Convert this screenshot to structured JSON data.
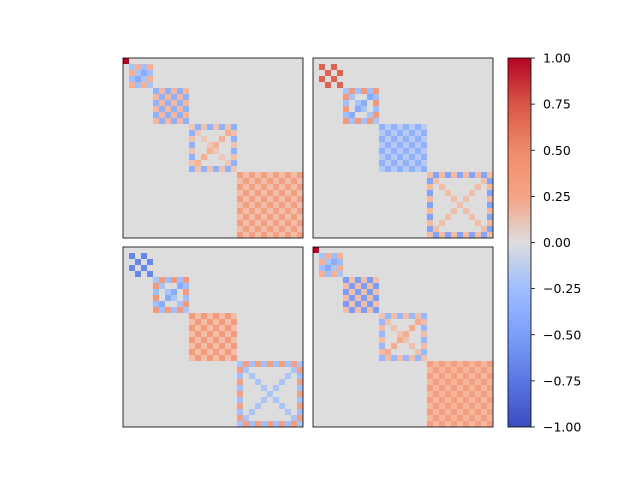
{
  "chart_data": {
    "type": "heatmap",
    "description": "2x2 grid of 30x30 matrix heatmaps with block-diagonal structure, shared diverging colorbar",
    "colormap": "coolwarm",
    "vmin": -1.0,
    "vmax": 1.0,
    "matrix_size": 30,
    "background_value": 0.0,
    "colorbar": {
      "ticks": [
        1.0,
        0.75,
        0.5,
        0.25,
        0.0,
        -0.25,
        -0.5,
        -0.75,
        -1.0
      ],
      "tick_labels": [
        "1.00",
        "0.75",
        "0.50",
        "0.25",
        "0.00",
        "−0.25",
        "−0.50",
        "−0.75",
        "−1.00"
      ]
    },
    "panels": [
      {
        "name": "top-left",
        "blocks": [
          {
            "start": 0,
            "size": 1,
            "pattern": "uniform",
            "value": 1.0
          },
          {
            "start": 1,
            "size": 4,
            "pattern": "ring",
            "value": 0.3,
            "alt": -0.4
          },
          {
            "start": 5,
            "size": 6,
            "pattern": "checker",
            "value": -0.35,
            "alt": 0.25
          },
          {
            "start": 11,
            "size": 8,
            "pattern": "ring",
            "value": -0.35,
            "alt": 0.3
          },
          {
            "start": 19,
            "size": 11,
            "pattern": "checker",
            "value": 0.45,
            "alt": 0.2
          }
        ]
      },
      {
        "name": "top-right",
        "blocks": [
          {
            "start": 1,
            "size": 4,
            "pattern": "checker",
            "value": 0.7,
            "alt": 0.0
          },
          {
            "start": 5,
            "size": 6,
            "pattern": "ring",
            "value": 0.5,
            "alt": -0.4
          },
          {
            "start": 11,
            "size": 8,
            "pattern": "checker",
            "value": -0.35,
            "alt": -0.15
          },
          {
            "start": 19,
            "size": 11,
            "pattern": "ring",
            "value": -0.45,
            "alt": 0.4
          }
        ]
      },
      {
        "name": "bottom-left",
        "blocks": [
          {
            "start": 1,
            "size": 4,
            "pattern": "checker",
            "value": -0.65,
            "alt": 0.0
          },
          {
            "start": 5,
            "size": 6,
            "pattern": "ring",
            "value": 0.5,
            "alt": -0.4
          },
          {
            "start": 11,
            "size": 8,
            "pattern": "checker",
            "value": 0.5,
            "alt": 0.2
          },
          {
            "start": 19,
            "size": 11,
            "pattern": "ring",
            "value": 0.45,
            "alt": -0.4
          }
        ]
      },
      {
        "name": "bottom-right",
        "blocks": [
          {
            "start": 0,
            "size": 1,
            "pattern": "uniform",
            "value": 1.0
          },
          {
            "start": 1,
            "size": 4,
            "pattern": "ring",
            "value": 0.3,
            "alt": -0.4
          },
          {
            "start": 5,
            "size": 6,
            "pattern": "checker",
            "value": -0.5,
            "alt": 0.2
          },
          {
            "start": 11,
            "size": 8,
            "pattern": "ring",
            "value": -0.3,
            "alt": 0.35
          },
          {
            "start": 19,
            "size": 11,
            "pattern": "checker",
            "value": 0.45,
            "alt": 0.25
          }
        ]
      }
    ]
  }
}
